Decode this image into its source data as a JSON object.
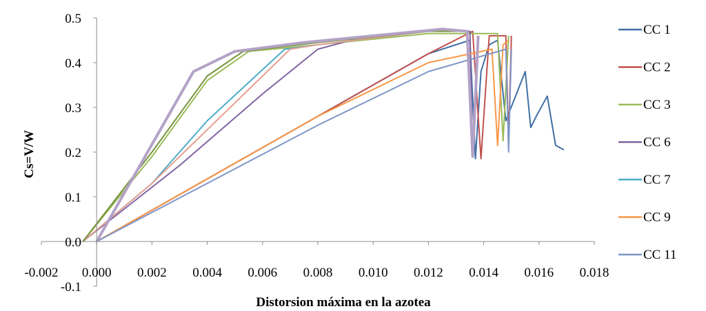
{
  "chart_data": {
    "type": "line",
    "title": "",
    "xlabel": "Distorsion máxima en la azotea",
    "ylabel": "Cs=V/W",
    "xlim": [
      -0.002,
      0.018
    ],
    "ylim": [
      -0.1,
      0.5
    ],
    "x_ticks": [
      "-0.002",
      "0.000",
      "0.002",
      "0.004",
      "0.006",
      "0.008",
      "0.010",
      "0.012",
      "0.014",
      "0.016",
      "0.018"
    ],
    "y_ticks": [
      "-0.1",
      "0.0",
      "0.1",
      "0.2",
      "0.3",
      "0.4",
      "0.5"
    ],
    "grid": false,
    "legend_position": "right",
    "series": [
      {
        "name": "CC 1",
        "color": "#3f6fa5",
        "x": [
          0.0,
          0.004,
          0.008,
          0.012,
          0.0135,
          0.0137,
          0.0139,
          0.0142,
          0.0145,
          0.0148,
          0.0155,
          0.0157,
          0.0159,
          0.0163,
          0.0166,
          0.0169
        ],
        "y": [
          0.0,
          0.14,
          0.28,
          0.42,
          0.45,
          0.185,
          0.38,
          0.44,
          0.45,
          0.27,
          0.38,
          0.255,
          0.28,
          0.325,
          0.215,
          0.205
        ]
      },
      {
        "name": "CC 2",
        "color": "#c0504d",
        "x": [
          0.0,
          0.004,
          0.008,
          0.012,
          0.0136,
          0.0139,
          0.0142,
          0.0145,
          0.0148,
          0.0149,
          0.015
        ],
        "y": [
          0.0,
          0.14,
          0.28,
          0.42,
          0.47,
          0.185,
          0.46,
          0.46,
          0.46,
          0.22,
          0.46
        ]
      },
      {
        "name": "CC 3",
        "color": "#9bbb59",
        "x": [
          -0.0005,
          0.002,
          0.004,
          0.0055,
          0.008,
          0.012,
          0.0145,
          0.0147,
          0.0149
        ],
        "y": [
          0.0,
          0.19,
          0.36,
          0.425,
          0.44,
          0.465,
          0.465,
          0.225,
          0.46
        ]
      },
      {
        "name": "CC 6",
        "color": "#8064a2",
        "x": [
          -0.0005,
          0.003,
          0.006,
          0.008,
          0.0095,
          0.012,
          0.0135,
          0.0136,
          0.0138
        ],
        "y": [
          0.0,
          0.17,
          0.33,
          0.43,
          0.455,
          0.47,
          0.47,
          0.19,
          0.46
        ]
      },
      {
        "name": "CC 7",
        "color": "#4bacc6",
        "x": [
          -0.0005,
          0.002,
          0.004,
          0.0068,
          0.008,
          0.012,
          0.0134,
          0.0136,
          0.0138
        ],
        "y": [
          0.0,
          0.13,
          0.27,
          0.43,
          0.44,
          0.47,
          0.47,
          0.19,
          0.46
        ]
      },
      {
        "name": "CC 9",
        "color": "#f79646",
        "x": [
          0.0,
          0.004,
          0.008,
          0.012,
          0.0143,
          0.0145,
          0.0147,
          0.0149
        ],
        "y": [
          0.0,
          0.14,
          0.28,
          0.4,
          0.43,
          0.215,
          0.44,
          0.45
        ]
      },
      {
        "name": "CC 11",
        "color": "#7f95c6",
        "x": [
          0.0,
          0.004,
          0.008,
          0.012,
          0.0148,
          0.0149,
          0.015
        ],
        "y": [
          0.0,
          0.13,
          0.26,
          0.38,
          0.43,
          0.2,
          0.43
        ]
      },
      {
        "color": "#e6a092",
        "x": [
          -0.0005,
          0.002,
          0.004,
          0.007,
          0.008,
          0.012,
          0.0134
        ],
        "y": [
          0.0,
          0.13,
          0.25,
          0.43,
          0.44,
          0.47,
          0.47
        ]
      },
      {
        "color": "#77933c",
        "x": [
          -0.0005,
          0.002,
          0.004,
          0.0053,
          0.008,
          0.012,
          0.0134
        ],
        "y": [
          0.0,
          0.2,
          0.37,
          0.425,
          0.445,
          0.47,
          0.47
        ]
      },
      {
        "color": "#b3a2c7",
        "width": 4,
        "x": [
          0.0,
          0.0035,
          0.005,
          0.0075,
          0.01,
          0.0125,
          0.0134,
          0.0136,
          0.0138
        ],
        "y": [
          0.0,
          0.38,
          0.425,
          0.445,
          0.46,
          0.475,
          0.47,
          0.19,
          0.46
        ]
      }
    ]
  }
}
